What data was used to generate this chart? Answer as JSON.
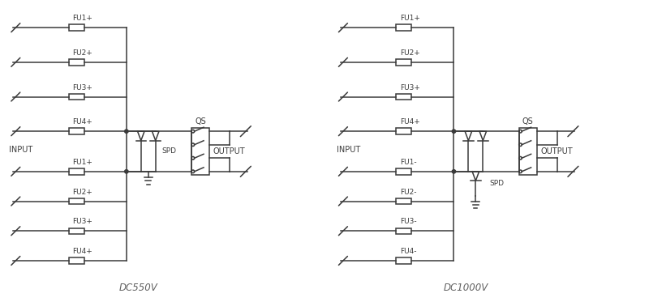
{
  "bg": "#ffffff",
  "lc": "#3a3a3a",
  "lw": 1.1,
  "fig_w": 8.0,
  "fig_h": 3.73,
  "dpi": 100,
  "d1_label": "DC550V",
  "d2_label": "DC1000V",
  "d1_fuses_top": [
    "FU1+",
    "FU2+",
    "FU3+",
    "FU4+"
  ],
  "d1_fuses_bot": [
    "FU1+",
    "FU2+",
    "FU3+",
    "FU4+"
  ],
  "d2_fuses_top": [
    "FU1+",
    "FU2+",
    "FU3+",
    "FU4+"
  ],
  "d2_fuses_bot": [
    "FU1-",
    "FU2-",
    "FU3-",
    "FU4-"
  ],
  "input_label": "INPUT",
  "output_label": "OUTPUT",
  "qs_label": "QS",
  "spd_label": "SPD"
}
